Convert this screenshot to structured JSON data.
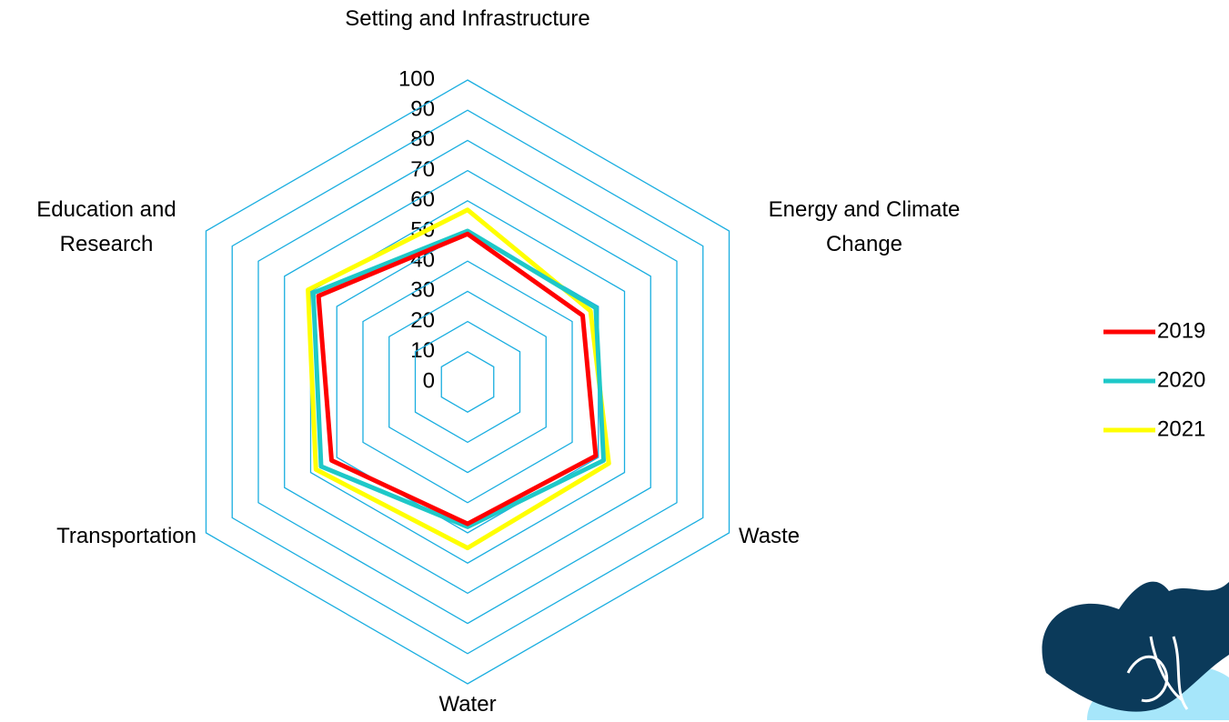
{
  "chart_data": {
    "type": "radar",
    "categories": [
      "Setting and Infrastructure",
      "Energy and Climate Change",
      "Waste",
      "Water",
      "Transportation",
      "Education and Research"
    ],
    "series": [
      {
        "name": "2019",
        "color": "#ff0000",
        "values": [
          49,
          44,
          49,
          47,
          52,
          57
        ]
      },
      {
        "name": "2020",
        "color": "#1ec8c8",
        "values": [
          50,
          49,
          52,
          48,
          56,
          59
        ]
      },
      {
        "name": "2021",
        "color": "#ffff00",
        "values": [
          57,
          47,
          54,
          55,
          58,
          61
        ]
      }
    ],
    "ylim": [
      0,
      100
    ],
    "yticks": [
      0,
      10,
      20,
      30,
      40,
      50,
      60,
      70,
      80,
      90,
      100
    ],
    "grid": true,
    "grid_color": "#1aaee0",
    "legend": "right"
  }
}
